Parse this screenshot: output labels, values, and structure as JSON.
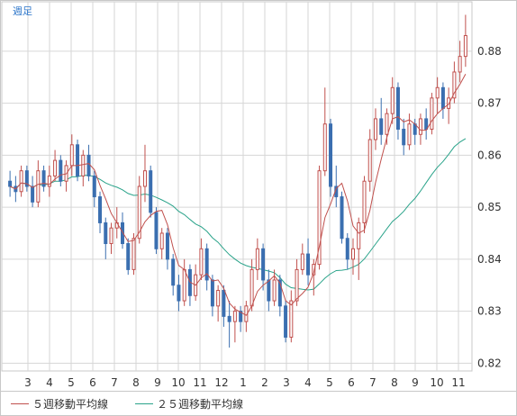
{
  "period_label": "週足",
  "legend": [
    {
      "label": "５週移動平均線",
      "color": "#c0504d"
    },
    {
      "label": "２５週移動平均線",
      "color": "#2aa38a"
    }
  ],
  "colors": {
    "up": "#c0504d",
    "down": "#3b6fb0",
    "ma5": "#c0504d",
    "ma25": "#2aa38a",
    "grid": "#d6d6d6",
    "frame": "#c8c8c8"
  },
  "chart_data": {
    "type": "candlestick",
    "x_tick_labels": [
      "3",
      "4",
      "5",
      "6",
      "7",
      "8",
      "9",
      "10",
      "11",
      "12",
      "1",
      "2",
      "3",
      "4",
      "5",
      "6",
      "7",
      "8",
      "9",
      "10",
      "11"
    ],
    "ylim": [
      0.8185,
      0.8895
    ],
    "y_ticks": [
      "0.82",
      "0.83",
      "0.84",
      "0.85",
      "0.86",
      "0.87",
      "0.88"
    ],
    "grid": true,
    "candles": [
      [
        0.855,
        0.857,
        0.852,
        0.854
      ],
      [
        0.854,
        0.856,
        0.851,
        0.853
      ],
      [
        0.853,
        0.858,
        0.852,
        0.857
      ],
      [
        0.857,
        0.858,
        0.853,
        0.854
      ],
      [
        0.854,
        0.856,
        0.85,
        0.851
      ],
      [
        0.851,
        0.859,
        0.85,
        0.857
      ],
      [
        0.857,
        0.858,
        0.853,
        0.854
      ],
      [
        0.854,
        0.858,
        0.852,
        0.856
      ],
      [
        0.856,
        0.861,
        0.855,
        0.859
      ],
      [
        0.859,
        0.86,
        0.854,
        0.855
      ],
      [
        0.855,
        0.859,
        0.853,
        0.858
      ],
      [
        0.858,
        0.864,
        0.856,
        0.862
      ],
      [
        0.862,
        0.863,
        0.855,
        0.856
      ],
      [
        0.856,
        0.861,
        0.854,
        0.86
      ],
      [
        0.86,
        0.862,
        0.855,
        0.856
      ],
      [
        0.856,
        0.857,
        0.85,
        0.852
      ],
      [
        0.852,
        0.853,
        0.845,
        0.847
      ],
      [
        0.847,
        0.848,
        0.84,
        0.843
      ],
      [
        0.843,
        0.847,
        0.841,
        0.846
      ],
      [
        0.846,
        0.85,
        0.844,
        0.847
      ],
      [
        0.847,
        0.849,
        0.842,
        0.843
      ],
      [
        0.843,
        0.844,
        0.837,
        0.838
      ],
      [
        0.838,
        0.845,
        0.837,
        0.844
      ],
      [
        0.844,
        0.856,
        0.843,
        0.854
      ],
      [
        0.854,
        0.862,
        0.851,
        0.857
      ],
      [
        0.857,
        0.858,
        0.848,
        0.849
      ],
      [
        0.849,
        0.85,
        0.841,
        0.842
      ],
      [
        0.842,
        0.846,
        0.84,
        0.845
      ],
      [
        0.845,
        0.846,
        0.838,
        0.84
      ],
      [
        0.84,
        0.841,
        0.833,
        0.835
      ],
      [
        0.835,
        0.837,
        0.83,
        0.832
      ],
      [
        0.832,
        0.84,
        0.831,
        0.838
      ],
      [
        0.838,
        0.839,
        0.831,
        0.833
      ],
      [
        0.833,
        0.839,
        0.832,
        0.837
      ],
      [
        0.837,
        0.844,
        0.836,
        0.842
      ],
      [
        0.842,
        0.843,
        0.834,
        0.836
      ],
      [
        0.836,
        0.837,
        0.829,
        0.831
      ],
      [
        0.831,
        0.835,
        0.828,
        0.834
      ],
      [
        0.834,
        0.835,
        0.827,
        0.829
      ],
      [
        0.829,
        0.832,
        0.823,
        0.828
      ],
      [
        0.828,
        0.831,
        0.824,
        0.83
      ],
      [
        0.83,
        0.831,
        0.826,
        0.828
      ],
      [
        0.828,
        0.832,
        0.826,
        0.831
      ],
      [
        0.831,
        0.84,
        0.83,
        0.838
      ],
      [
        0.838,
        0.844,
        0.836,
        0.842
      ],
      [
        0.842,
        0.843,
        0.834,
        0.836
      ],
      [
        0.836,
        0.838,
        0.83,
        0.832
      ],
      [
        0.832,
        0.838,
        0.831,
        0.836
      ],
      [
        0.836,
        0.837,
        0.829,
        0.831
      ],
      [
        0.831,
        0.832,
        0.824,
        0.825
      ],
      [
        0.825,
        0.834,
        0.824,
        0.832
      ],
      [
        0.832,
        0.84,
        0.831,
        0.838
      ],
      [
        0.838,
        0.843,
        0.837,
        0.841
      ],
      [
        0.841,
        0.844,
        0.835,
        0.837
      ],
      [
        0.837,
        0.84,
        0.833,
        0.839
      ],
      [
        0.839,
        0.858,
        0.838,
        0.857
      ],
      [
        0.857,
        0.873,
        0.856,
        0.866
      ],
      [
        0.866,
        0.867,
        0.852,
        0.854
      ],
      [
        0.854,
        0.858,
        0.85,
        0.852
      ],
      [
        0.852,
        0.853,
        0.843,
        0.844
      ],
      [
        0.844,
        0.845,
        0.838,
        0.84
      ],
      [
        0.84,
        0.844,
        0.837,
        0.842
      ],
      [
        0.842,
        0.848,
        0.836,
        0.847
      ],
      [
        0.847,
        0.856,
        0.845,
        0.855
      ],
      [
        0.855,
        0.865,
        0.853,
        0.863
      ],
      [
        0.863,
        0.869,
        0.861,
        0.867
      ],
      [
        0.867,
        0.871,
        0.862,
        0.864
      ],
      [
        0.864,
        0.869,
        0.862,
        0.868
      ],
      [
        0.868,
        0.875,
        0.866,
        0.873
      ],
      [
        0.873,
        0.874,
        0.863,
        0.865
      ],
      [
        0.865,
        0.867,
        0.86,
        0.862
      ],
      [
        0.862,
        0.868,
        0.861,
        0.866
      ],
      [
        0.866,
        0.867,
        0.862,
        0.864
      ],
      [
        0.864,
        0.868,
        0.862,
        0.867
      ],
      [
        0.867,
        0.869,
        0.863,
        0.865
      ],
      [
        0.865,
        0.872,
        0.864,
        0.871
      ],
      [
        0.871,
        0.875,
        0.868,
        0.873
      ],
      [
        0.873,
        0.874,
        0.867,
        0.869
      ],
      [
        0.869,
        0.873,
        0.866,
        0.871
      ],
      [
        0.871,
        0.878,
        0.87,
        0.876
      ],
      [
        0.876,
        0.882,
        0.874,
        0.879
      ],
      [
        0.879,
        0.887,
        0.877,
        0.883
      ]
    ]
  }
}
